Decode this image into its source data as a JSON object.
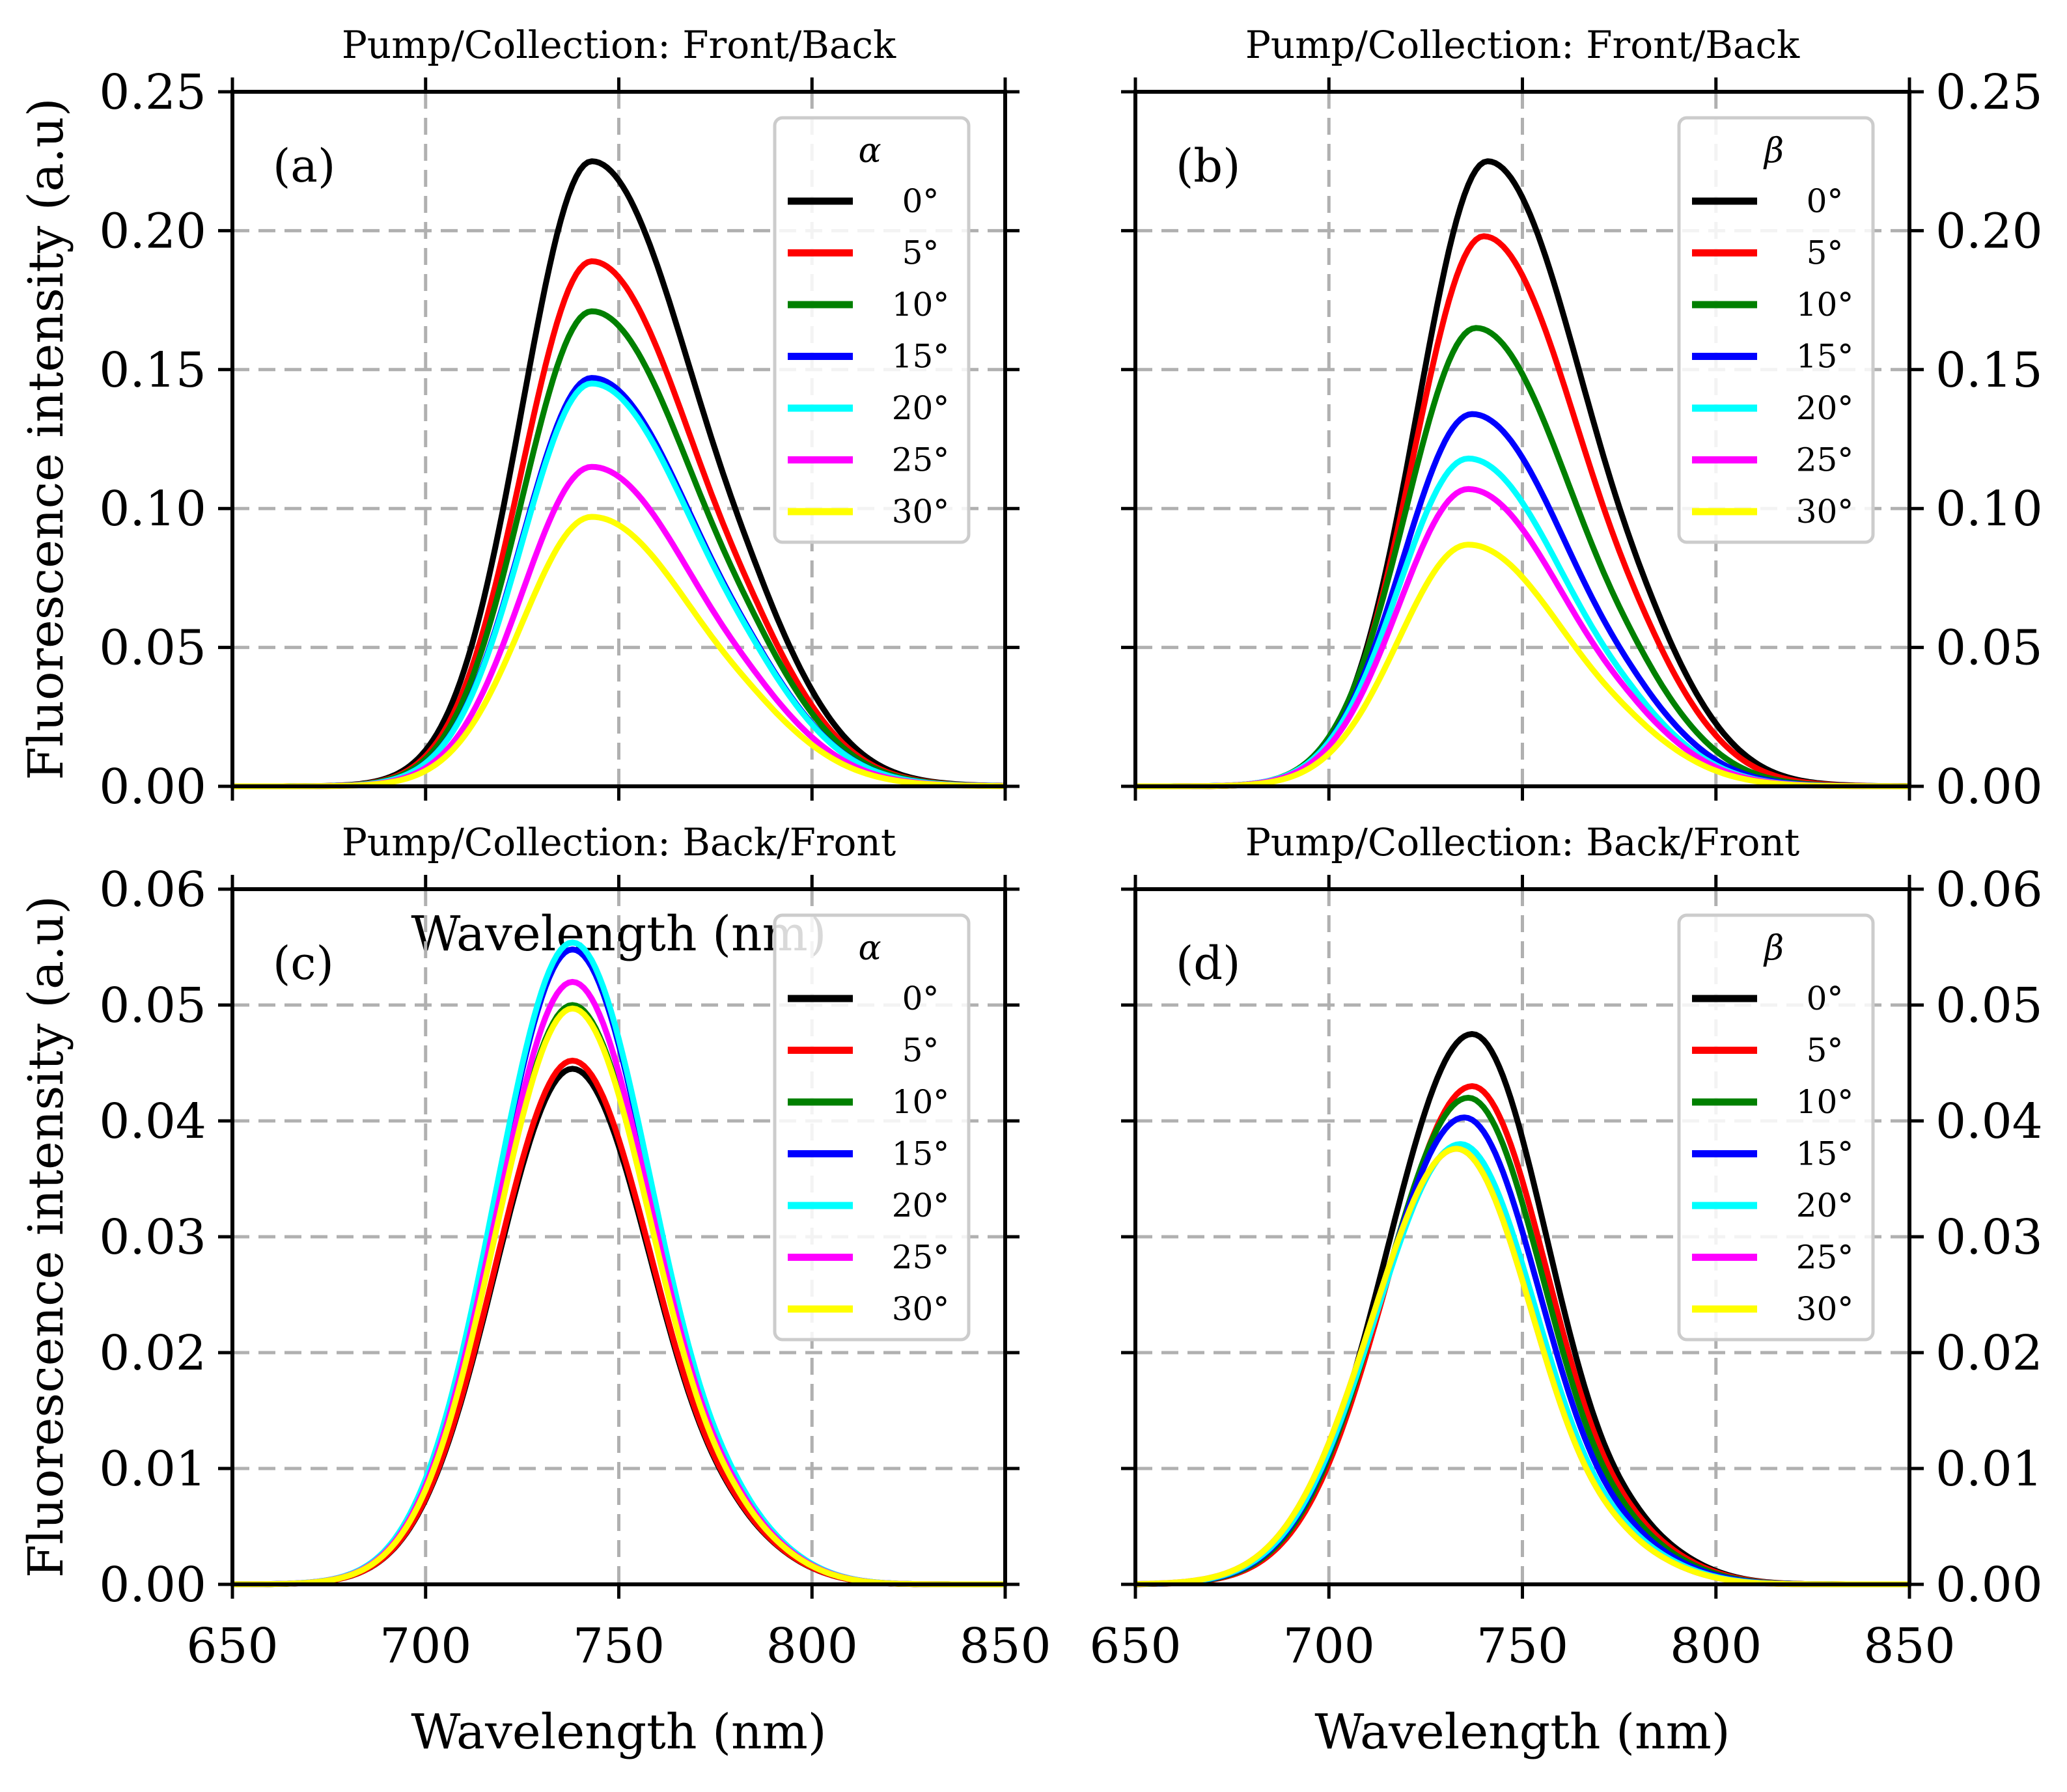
{
  "chart_data": [
    {
      "type": "line",
      "title": "Pump/Collection:  Front/Back",
      "panel_label": "(a)",
      "xlabel": "Wavelength (nm)",
      "ylabel": "Fluorescence intensity (a.u)",
      "xlim": [
        650,
        850
      ],
      "ylim": [
        0,
        0.25
      ],
      "xticks": [
        "650",
        "700",
        "750",
        "800",
        "850"
      ],
      "yticks": [
        "0.00",
        "0.05",
        "0.10",
        "0.15",
        "0.20",
        "0.25"
      ],
      "y_axis_side": "left",
      "grid": true,
      "legend_title": "α",
      "legend_position": "top-right",
      "peak_wavelength": 743,
      "series": [
        {
          "name": "0°",
          "color": "#000000",
          "peak": 0.225
        },
        {
          "name": "5°",
          "color": "#ff0000",
          "peak": 0.189
        },
        {
          "name": "10°",
          "color": "#008000",
          "peak": 0.171
        },
        {
          "name": "15°",
          "color": "#0000ff",
          "peak": 0.147
        },
        {
          "name": "20°",
          "color": "#00ffff",
          "peak": 0.145
        },
        {
          "name": "25°",
          "color": "#ff00ff",
          "peak": 0.115
        },
        {
          "name": "30°",
          "color": "#ffff00",
          "peak": 0.097
        }
      ]
    },
    {
      "type": "line",
      "title": "Pump/Collection:  Front/Back",
      "panel_label": "(b)",
      "xlabel": "",
      "ylabel": "",
      "xlim": [
        650,
        850
      ],
      "ylim": [
        0,
        0.25
      ],
      "xticks": [
        "650",
        "700",
        "750",
        "800",
        "850"
      ],
      "yticks": [
        "0.00",
        "0.05",
        "0.10",
        "0.15",
        "0.20",
        "0.25"
      ],
      "y_axis_side": "right",
      "grid": true,
      "legend_title": "β",
      "legend_position": "top-right",
      "series": [
        {
          "name": "0°",
          "color": "#000000",
          "peak": 0.225,
          "peak_wavelength": 741
        },
        {
          "name": "5°",
          "color": "#ff0000",
          "peak": 0.198,
          "peak_wavelength": 740
        },
        {
          "name": "10°",
          "color": "#008000",
          "peak": 0.165,
          "peak_wavelength": 738
        },
        {
          "name": "15°",
          "color": "#0000ff",
          "peak": 0.134,
          "peak_wavelength": 737
        },
        {
          "name": "20°",
          "color": "#00ffff",
          "peak": 0.118,
          "peak_wavelength": 736
        },
        {
          "name": "25°",
          "color": "#ff00ff",
          "peak": 0.107,
          "peak_wavelength": 736
        },
        {
          "name": "30°",
          "color": "#ffff00",
          "peak": 0.087,
          "peak_wavelength": 736
        }
      ]
    },
    {
      "type": "line",
      "title": "Pump/Collection:  Back/Front",
      "panel_label": "(c)",
      "xlabel": "Wavelength (nm)",
      "ylabel": "Fluorescence intensity (a.u)",
      "xlim": [
        650,
        850
      ],
      "ylim": [
        0,
        0.06
      ],
      "xticks": [
        "650",
        "700",
        "750",
        "800",
        "850"
      ],
      "yticks": [
        "0.00",
        "0.01",
        "0.02",
        "0.03",
        "0.04",
        "0.05",
        "0.06"
      ],
      "y_axis_side": "left",
      "grid": true,
      "legend_title": "α",
      "legend_position": "top-right",
      "peak_wavelength": 738,
      "series": [
        {
          "name": "0°",
          "color": "#000000",
          "peak": 0.0445
        },
        {
          "name": "5°",
          "color": "#ff0000",
          "peak": 0.0452
        },
        {
          "name": "10°",
          "color": "#008000",
          "peak": 0.05
        },
        {
          "name": "15°",
          "color": "#0000ff",
          "peak": 0.0548
        },
        {
          "name": "20°",
          "color": "#00ffff",
          "peak": 0.0554
        },
        {
          "name": "25°",
          "color": "#ff00ff",
          "peak": 0.052
        },
        {
          "name": "30°",
          "color": "#ffff00",
          "peak": 0.0497
        }
      ]
    },
    {
      "type": "line",
      "title": "Pump/Collection:  Back/Front",
      "panel_label": "(d)",
      "xlabel": "Wavelength (nm)",
      "ylabel": "",
      "xlim": [
        650,
        850
      ],
      "ylim": [
        0,
        0.06
      ],
      "xticks": [
        "650",
        "700",
        "750",
        "800",
        "850"
      ],
      "yticks": [
        "0.00",
        "0.01",
        "0.02",
        "0.03",
        "0.04",
        "0.05",
        "0.06"
      ],
      "y_axis_side": "right",
      "grid": true,
      "legend_title": "β",
      "legend_position": "top-right",
      "series": [
        {
          "name": "0°",
          "color": "#000000",
          "peak": 0.0475,
          "peak_wavelength": 737
        },
        {
          "name": "5°",
          "color": "#ff0000",
          "peak": 0.043,
          "peak_wavelength": 737
        },
        {
          "name": "10°",
          "color": "#008000",
          "peak": 0.042,
          "peak_wavelength": 736
        },
        {
          "name": "15°",
          "color": "#0000ff",
          "peak": 0.0403,
          "peak_wavelength": 735
        },
        {
          "name": "20°",
          "color": "#00ffff",
          "peak": 0.038,
          "peak_wavelength": 734
        },
        {
          "name": "25°",
          "color": "#ff00ff",
          "peak": 0.0376,
          "peak_wavelength": 733
        },
        {
          "name": "30°",
          "color": "#ffff00",
          "peak": 0.0376,
          "peak_wavelength": 733
        }
      ]
    }
  ]
}
